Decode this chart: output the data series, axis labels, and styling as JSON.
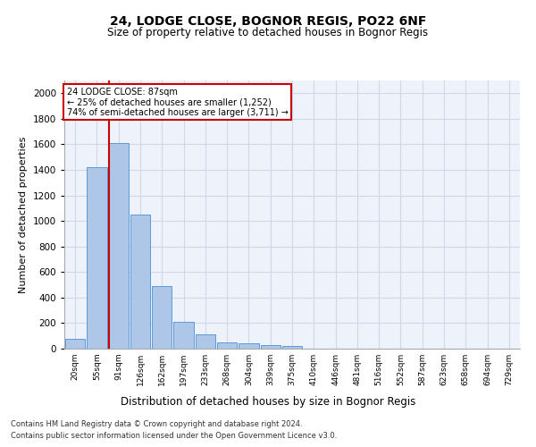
{
  "title1": "24, LODGE CLOSE, BOGNOR REGIS, PO22 6NF",
  "title2": "Size of property relative to detached houses in Bognor Regis",
  "xlabel": "Distribution of detached houses by size in Bognor Regis",
  "ylabel": "Number of detached properties",
  "categories": [
    "20sqm",
    "55sqm",
    "91sqm",
    "126sqm",
    "162sqm",
    "197sqm",
    "233sqm",
    "268sqm",
    "304sqm",
    "339sqm",
    "375sqm",
    "410sqm",
    "446sqm",
    "481sqm",
    "516sqm",
    "552sqm",
    "587sqm",
    "623sqm",
    "658sqm",
    "694sqm",
    "729sqm"
  ],
  "values": [
    80,
    1420,
    1610,
    1050,
    490,
    210,
    110,
    50,
    40,
    25,
    20,
    0,
    0,
    0,
    0,
    0,
    0,
    0,
    0,
    0,
    0
  ],
  "bar_color": "#aec6e8",
  "bar_edge_color": "#5b9bd5",
  "vline_color": "#cc0000",
  "vline_x_index": 2,
  "annotation_line1": "24 LODGE CLOSE: 87sqm",
  "annotation_line2": "← 25% of detached houses are smaller (1,252)",
  "annotation_line3": "74% of semi-detached houses are larger (3,711) →",
  "annotation_box_color": "#cc0000",
  "ylim": [
    0,
    2100
  ],
  "yticks": [
    0,
    200,
    400,
    600,
    800,
    1000,
    1200,
    1400,
    1600,
    1800,
    2000
  ],
  "grid_color": "#d0d8e8",
  "background_color": "#eef2fa",
  "footer1": "Contains HM Land Registry data © Crown copyright and database right 2024.",
  "footer2": "Contains public sector information licensed under the Open Government Licence v3.0."
}
